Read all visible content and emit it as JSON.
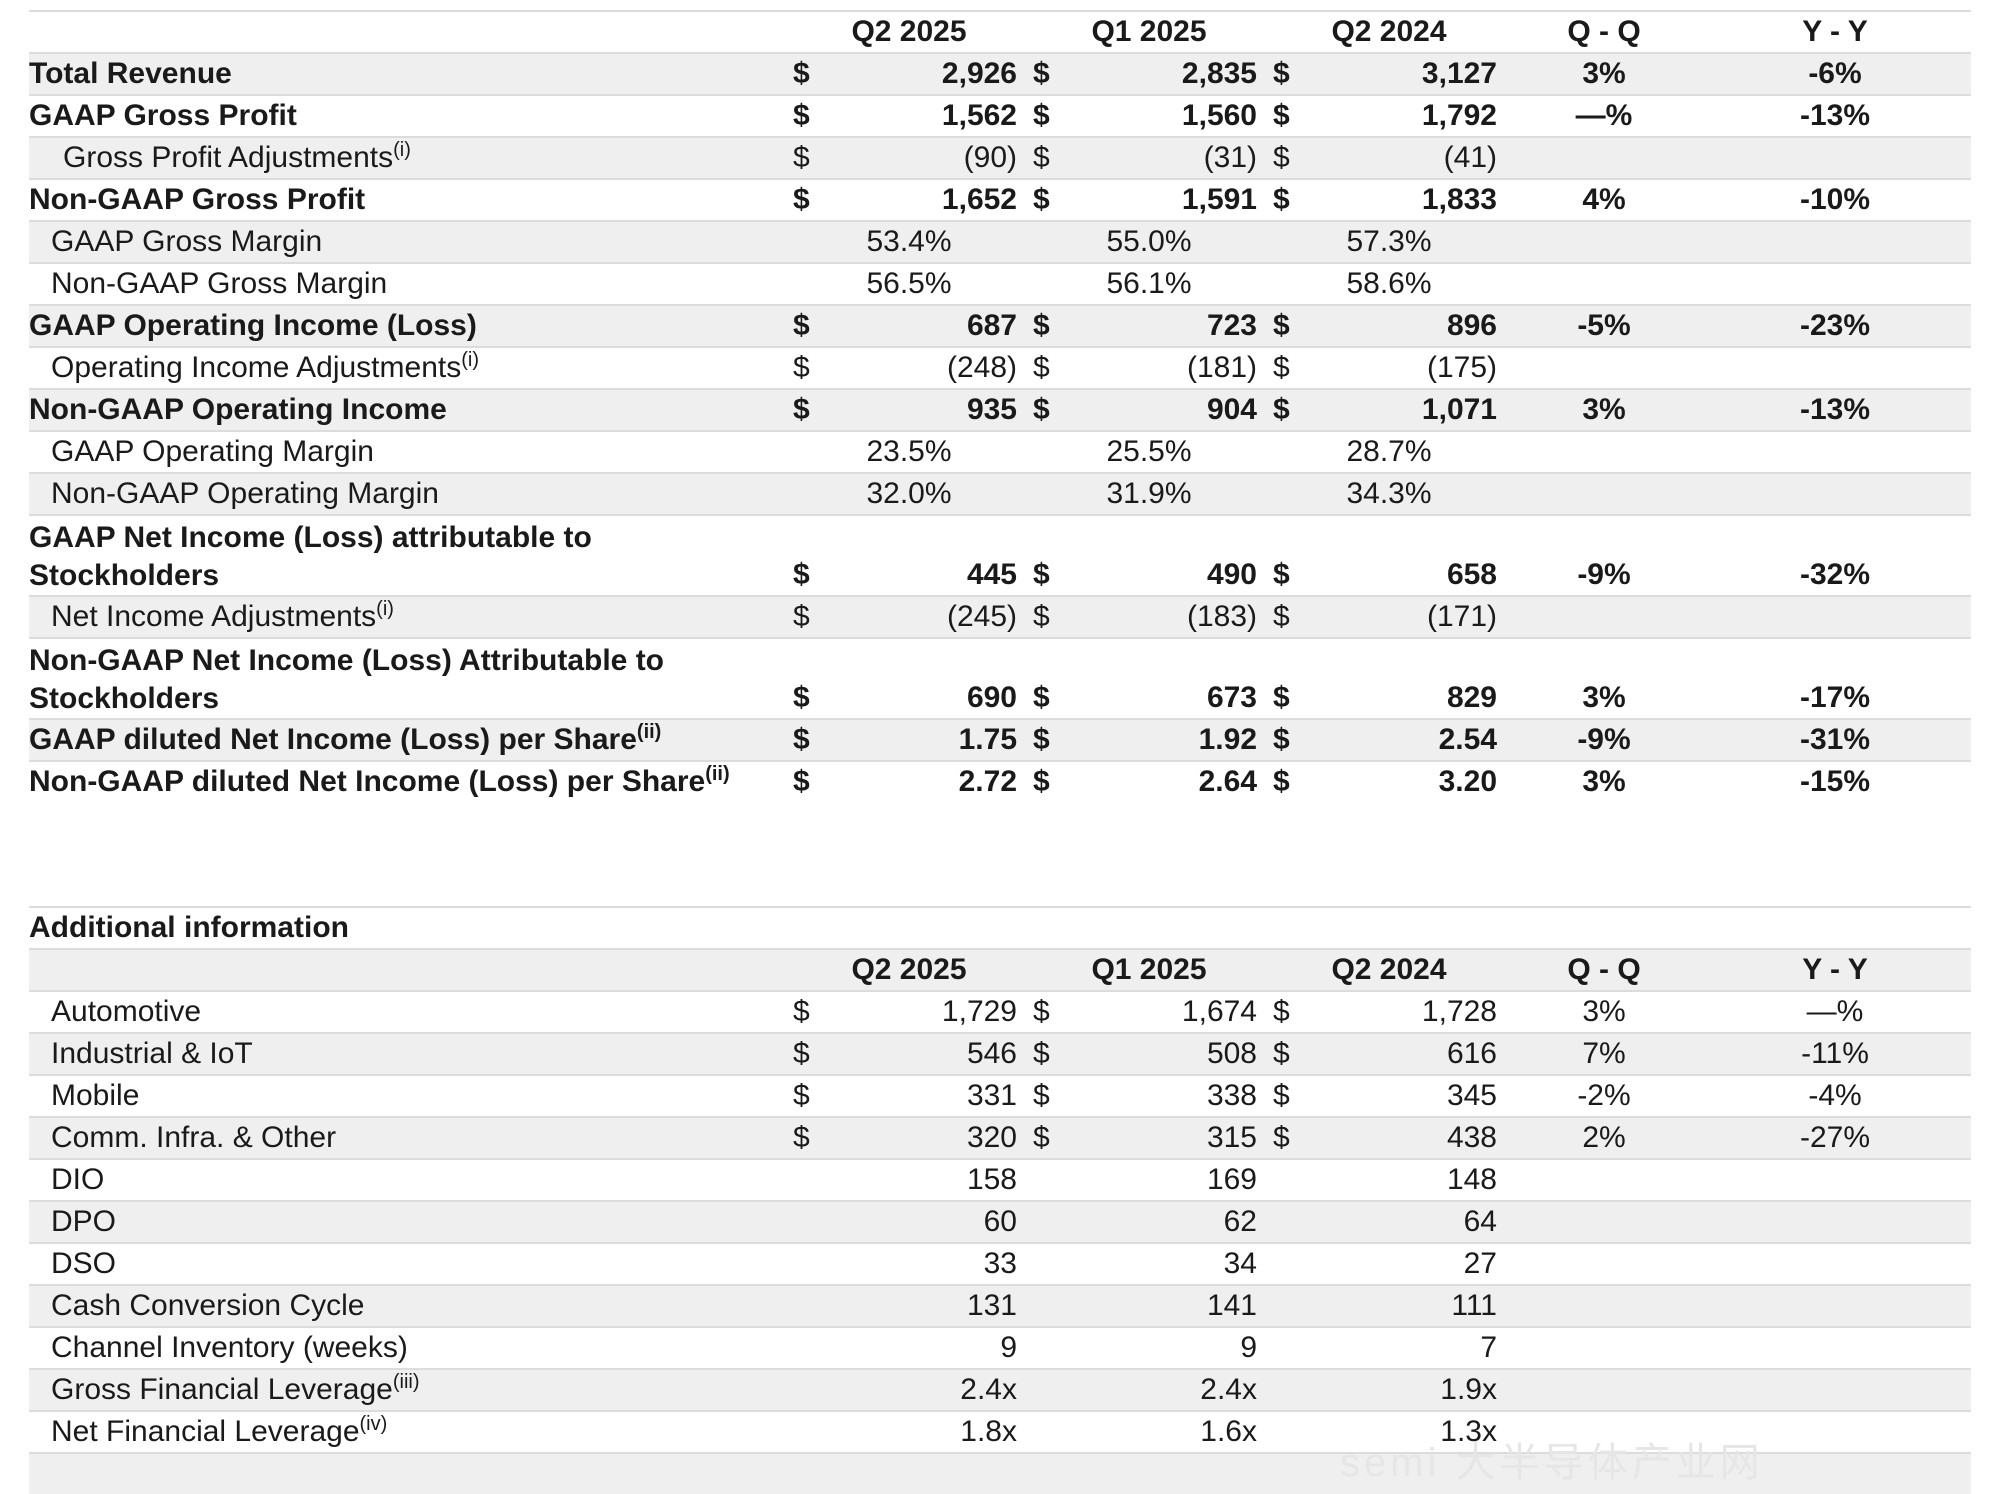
{
  "headers": [
    "Q2 2025",
    "Q1 2025",
    "Q2 2024",
    "Q - Q",
    "Y - Y"
  ],
  "rows": [
    {
      "label": "Total Revenue",
      "cur": [
        "$",
        "$",
        "$"
      ],
      "vals": [
        "2,926",
        "2,835",
        "3,127"
      ],
      "qq": "3%",
      "yy": "-6%"
    },
    {
      "label": "GAAP Gross Profit",
      "cur": [
        "$",
        "$",
        "$"
      ],
      "vals": [
        "1,562",
        "1,560",
        "1,792"
      ],
      "qq": "—%",
      "yy": "-13%"
    },
    {
      "label": "Gross Profit Adjustments",
      "sup": "(i)",
      "cur": [
        "$",
        "$",
        "$"
      ],
      "vals": [
        "(90)",
        "(31)",
        "(41)"
      ],
      "qq": "",
      "yy": ""
    },
    {
      "label": "Non-GAAP Gross Profit",
      "cur": [
        "$",
        "$",
        "$"
      ],
      "vals": [
        "1,652",
        "1,591",
        "1,833"
      ],
      "qq": "4%",
      "yy": "-10%"
    },
    {
      "label": "GAAP Gross Margin",
      "vals": [
        "53.4%",
        "55.0%",
        "57.3%"
      ]
    },
    {
      "label": "Non-GAAP Gross Margin",
      "vals": [
        "56.5%",
        "56.1%",
        "58.6%"
      ]
    },
    {
      "label": "GAAP Operating Income (Loss)",
      "cur": [
        "$",
        "$",
        "$"
      ],
      "vals": [
        "687",
        "723",
        "896"
      ],
      "qq": "-5%",
      "yy": "-23%"
    },
    {
      "label": "Operating Income Adjustments",
      "sup": "(i)",
      "cur": [
        "$",
        "$",
        "$"
      ],
      "vals": [
        "(248)",
        "(181)",
        "(175)"
      ]
    },
    {
      "label": "Non-GAAP Operating Income",
      "cur": [
        "$",
        "$",
        "$"
      ],
      "vals": [
        "935",
        "904",
        "1,071"
      ],
      "qq": "3%",
      "yy": "-13%"
    },
    {
      "label": "GAAP Operating Margin",
      "vals": [
        "23.5%",
        "25.5%",
        "28.7%"
      ]
    },
    {
      "label": "Non-GAAP Operating Margin",
      "vals": [
        "32.0%",
        "31.9%",
        "34.3%"
      ]
    },
    {
      "label": "GAAP Net Income (Loss) attributable to Stockholders",
      "cur": [
        "$",
        "$",
        "$"
      ],
      "vals": [
        "445",
        "490",
        "658"
      ],
      "qq": "-9%",
      "yy": "-32%"
    },
    {
      "label": "Net Income Adjustments",
      "sup": "(i)",
      "cur": [
        "$",
        "$",
        "$"
      ],
      "vals": [
        "(245)",
        "(183)",
        "(171)"
      ]
    },
    {
      "label": "Non-GAAP Net Income (Loss) Attributable to Stockholders",
      "cur": [
        "$",
        "$",
        "$"
      ],
      "vals": [
        "690",
        "673",
        "829"
      ],
      "qq": "3%",
      "yy": "-17%"
    },
    {
      "label": "GAAP diluted Net Income (Loss) per Share",
      "sup": "(ii)",
      "cur": [
        "$",
        "$",
        "$"
      ],
      "vals": [
        "1.75",
        "1.92",
        "2.54"
      ],
      "qq": "-9%",
      "yy": "-31%"
    },
    {
      "label": "Non-GAAP diluted Net Income (Loss) per Share",
      "sup": "(ii)",
      "cur": [
        "$",
        "$",
        "$"
      ],
      "vals": [
        "2.72",
        "2.64",
        "3.20"
      ],
      "qq": "3%",
      "yy": "-15%"
    }
  ],
  "additional": {
    "title": "Additional information",
    "headers": [
      "Q2 2025",
      "Q1 2025",
      "Q2 2024",
      "Q - Q",
      "Y - Y"
    ],
    "rows": [
      {
        "label": "Automotive",
        "cur": [
          "$",
          "$",
          "$"
        ],
        "vals": [
          "1,729",
          "1,674",
          "1,728"
        ],
        "qq": "3%",
        "yy": "—%"
      },
      {
        "label": "Industrial & IoT",
        "cur": [
          "$",
          "$",
          "$"
        ],
        "vals": [
          "546",
          "508",
          "616"
        ],
        "qq": "7%",
        "yy": "-11%"
      },
      {
        "label": "Mobile",
        "cur": [
          "$",
          "$",
          "$"
        ],
        "vals": [
          "331",
          "338",
          "345"
        ],
        "qq": "-2%",
        "yy": "-4%"
      },
      {
        "label": "Comm. Infra. & Other",
        "cur": [
          "$",
          "$",
          "$"
        ],
        "vals": [
          "320",
          "315",
          "438"
        ],
        "qq": "2%",
        "yy": "-27%"
      },
      {
        "label": "DIO",
        "vals": [
          "158",
          "169",
          "148"
        ]
      },
      {
        "label": "DPO",
        "vals": [
          "60",
          "62",
          "64"
        ]
      },
      {
        "label": "DSO",
        "vals": [
          "33",
          "34",
          "27"
        ]
      },
      {
        "label": "Cash Conversion Cycle",
        "vals": [
          "131",
          "141",
          "111"
        ]
      },
      {
        "label": "Channel Inventory (weeks)",
        "vals": [
          "9",
          "9",
          "7"
        ]
      },
      {
        "label": "Gross Financial Leverage",
        "sup": "(iii)",
        "vals": [
          "2.4x",
          "2.4x",
          "1.9x"
        ]
      },
      {
        "label": "Net Financial Leverage",
        "sup": "(iv)",
        "vals": [
          "1.8x",
          "1.6x",
          "1.3x"
        ]
      }
    ]
  },
  "watermark": "semi 大半导体产业网"
}
